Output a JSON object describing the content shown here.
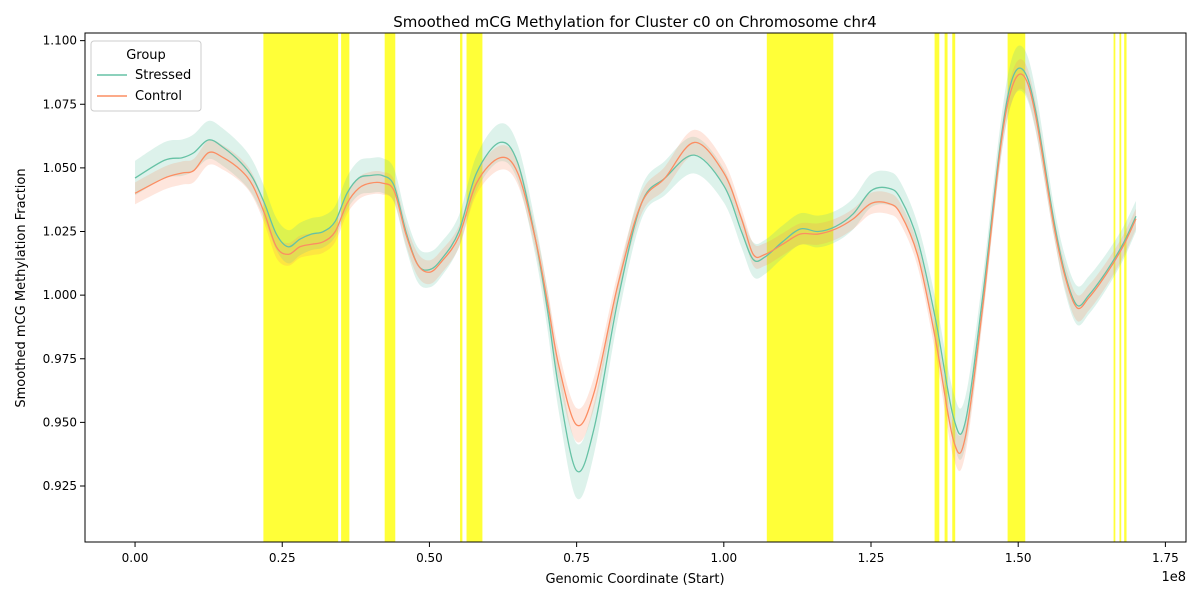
{
  "chart_data": {
    "type": "line",
    "title": "Smoothed mCG Methylation for Cluster c0 on Chromosome chr4",
    "xlabel": "Genomic Coordinate (Start)",
    "ylabel": "Smoothed mCG Methylation Fraction",
    "x_offset_label": "1e8",
    "x_scale_note": "x values in units of 1e8 bp",
    "xlim": [
      -0.085,
      1.785
    ],
    "ylim": [
      0.903,
      1.103
    ],
    "x_ticks": [
      0.0,
      0.25,
      0.5,
      0.75,
      1.0,
      1.25,
      1.5,
      1.75
    ],
    "x_tick_labels": [
      "0.00",
      "0.25",
      "0.50",
      "0.75",
      "1.00",
      "1.25",
      "1.50",
      "1.75"
    ],
    "y_ticks": [
      0.925,
      0.95,
      0.975,
      1.0,
      1.025,
      1.05,
      1.075,
      1.1
    ],
    "y_tick_labels": [
      "0.925",
      "0.950",
      "0.975",
      "1.000",
      "1.025",
      "1.050",
      "1.075",
      "1.100"
    ],
    "grid": false,
    "legend": {
      "title": "Group",
      "placement": "top-left"
    },
    "highlight_color": "#ffff00",
    "highlight_regions": [
      [
        0.218,
        0.345
      ],
      [
        0.35,
        0.364
      ],
      [
        0.424,
        0.442
      ],
      [
        0.552,
        0.556
      ],
      [
        0.563,
        0.59
      ],
      [
        1.073,
        1.186
      ],
      [
        1.358,
        1.366
      ],
      [
        1.375,
        1.38
      ],
      [
        1.388,
        1.393
      ],
      [
        1.482,
        1.512
      ],
      [
        1.662,
        1.665
      ],
      [
        1.672,
        1.675
      ],
      [
        1.68,
        1.684
      ]
    ],
    "x": [
      0.0,
      0.05,
      0.08,
      0.1,
      0.125,
      0.15,
      0.18,
      0.2,
      0.22,
      0.24,
      0.26,
      0.28,
      0.3,
      0.32,
      0.34,
      0.36,
      0.38,
      0.4,
      0.42,
      0.44,
      0.46,
      0.48,
      0.5,
      0.52,
      0.55,
      0.58,
      0.62,
      0.65,
      0.68,
      0.7,
      0.72,
      0.75,
      0.78,
      0.82,
      0.86,
      0.9,
      0.95,
      1.0,
      1.03,
      1.05,
      1.07,
      1.1,
      1.13,
      1.16,
      1.19,
      1.22,
      1.25,
      1.28,
      1.3,
      1.33,
      1.36,
      1.39,
      1.41,
      1.44,
      1.47,
      1.49,
      1.51,
      1.53,
      1.56,
      1.58,
      1.6,
      1.62,
      1.64,
      1.66,
      1.68,
      1.7
    ],
    "series": [
      {
        "name": "Stressed",
        "color": "#66c2a5",
        "values": [
          1.046,
          1.053,
          1.054,
          1.056,
          1.061,
          1.058,
          1.052,
          1.046,
          1.036,
          1.024,
          1.019,
          1.022,
          1.024,
          1.025,
          1.029,
          1.04,
          1.046,
          1.047,
          1.047,
          1.043,
          1.025,
          1.012,
          1.01,
          1.014,
          1.025,
          1.048,
          1.06,
          1.052,
          1.022,
          0.995,
          0.963,
          0.931,
          0.948,
          0.998,
          1.036,
          1.046,
          1.055,
          1.043,
          1.025,
          1.014,
          1.015,
          1.021,
          1.026,
          1.025,
          1.027,
          1.032,
          1.041,
          1.042,
          1.038,
          1.021,
          0.99,
          0.952,
          0.95,
          1.0,
          1.06,
          1.085,
          1.088,
          1.072,
          1.03,
          1.008,
          0.996,
          1.0,
          1.006,
          1.013,
          1.021,
          1.031
        ],
        "band": 0.006
      },
      {
        "name": "Control",
        "color": "#fc8d62",
        "values": [
          1.04,
          1.046,
          1.048,
          1.049,
          1.056,
          1.054,
          1.049,
          1.043,
          1.032,
          1.019,
          1.016,
          1.019,
          1.02,
          1.021,
          1.025,
          1.036,
          1.042,
          1.044,
          1.044,
          1.041,
          1.024,
          1.012,
          1.009,
          1.013,
          1.023,
          1.044,
          1.054,
          1.048,
          1.022,
          0.998,
          0.972,
          0.949,
          0.962,
          1.004,
          1.036,
          1.046,
          1.06,
          1.048,
          1.03,
          1.016,
          1.016,
          1.02,
          1.024,
          1.024,
          1.026,
          1.03,
          1.036,
          1.036,
          1.032,
          1.015,
          0.982,
          0.943,
          0.944,
          0.996,
          1.058,
          1.082,
          1.086,
          1.07,
          1.028,
          1.007,
          0.995,
          0.999,
          1.005,
          1.012,
          1.02,
          1.03
        ],
        "band": 0.004
      }
    ]
  }
}
